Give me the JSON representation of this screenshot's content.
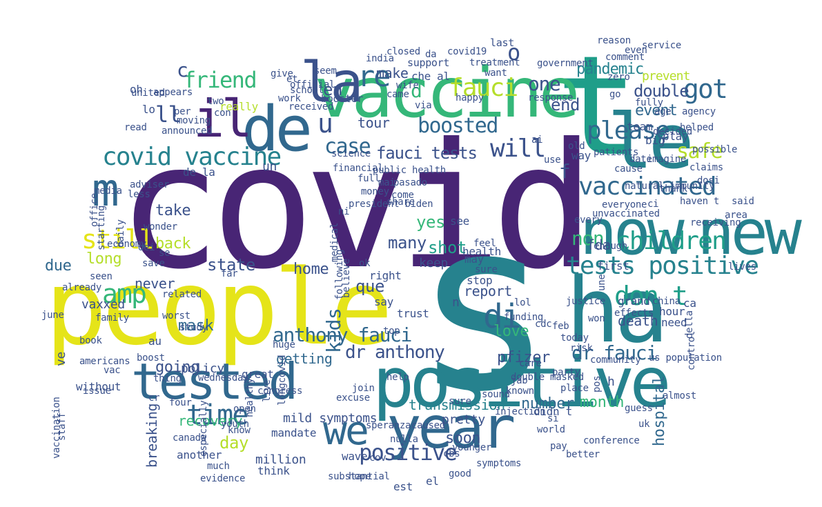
{
  "title": "COVID-19 Tweets Word Cloud",
  "palette": {
    "purple": "#482575",
    "indigo": "#3b528b",
    "blue": "#31688e",
    "teal": "#26828e",
    "tealgreen": "#1f9e89",
    "green": "#35b779",
    "lime": "#6ece58",
    "yellowgreen": "#b5de2b",
    "yellow": "#e5e419"
  },
  "words": [
    {
      "text": "covid",
      "color": "#482575"
    },
    {
      "text": "s",
      "color": "#26828e"
    },
    {
      "text": "people",
      "color": "#e5e419"
    },
    {
      "text": "t",
      "color": "#1f9e89"
    },
    {
      "text": "vaccine",
      "color": "#35b779"
    },
    {
      "text": "new",
      "color": "#26828e"
    },
    {
      "text": "now",
      "color": "#26828e"
    },
    {
      "text": "ha",
      "color": "#26828e"
    },
    {
      "text": "positive",
      "color": "#26828e"
    },
    {
      "text": "tested",
      "color": "#31688e"
    },
    {
      "text": "year",
      "color": "#31688e"
    },
    {
      "text": "le",
      "color": "#26828e"
    },
    {
      "text": "la",
      "color": "#3b528b"
    },
    {
      "text": "de",
      "color": "#31688e"
    },
    {
      "text": "il",
      "color": "#482575"
    },
    {
      "text": "m",
      "color": "#31688e"
    },
    {
      "text": "we",
      "color": "#31688e"
    },
    {
      "text": "tests positive",
      "color": "#26828e"
    },
    {
      "text": "children",
      "color": "#1f9e89"
    },
    {
      "text": "vaccinated",
      "color": "#31688e"
    },
    {
      "text": "please",
      "color": "#31688e"
    },
    {
      "text": "covid vaccine",
      "color": "#26828e"
    },
    {
      "text": "fauci",
      "color": "#b5de2b"
    },
    {
      "text": "got",
      "color": "#31688e"
    },
    {
      "text": "amp",
      "color": "#35b779"
    },
    {
      "text": "still",
      "color": "#e5e419"
    },
    {
      "text": "don t",
      "color": "#1f9e89"
    },
    {
      "text": "di",
      "color": "#31688e"
    },
    {
      "text": "time",
      "color": "#31688e"
    },
    {
      "text": "positive",
      "color": "#3b528b"
    },
    {
      "text": "friend",
      "color": "#35b779"
    },
    {
      "text": "boosted",
      "color": "#31688e"
    },
    {
      "text": "case",
      "color": "#31688e"
    },
    {
      "text": "will",
      "color": "#3b528b"
    },
    {
      "text": "safe",
      "color": "#b5de2b"
    },
    {
      "text": "re",
      "color": "#31688e"
    },
    {
      "text": "anthony fauci",
      "color": "#31688e"
    },
    {
      "text": "dr fauci",
      "color": "#31688e"
    },
    {
      "text": "one",
      "color": "#3b528b"
    },
    {
      "text": "fauci tests",
      "color": "#3b528b"
    },
    {
      "text": "non",
      "color": "#35b779"
    },
    {
      "text": "en",
      "color": "#3b528b"
    },
    {
      "text": "u",
      "color": "#3b528b"
    },
    {
      "text": "ll",
      "color": "#3b528b"
    },
    {
      "text": "o",
      "color": "#3b528b"
    },
    {
      "text": "c",
      "color": "#3b528b"
    },
    {
      "text": "d",
      "color": "#35b779"
    },
    {
      "text": "f",
      "color": "#3b528b"
    },
    {
      "text": "pandemic",
      "color": "#26828e"
    },
    {
      "text": "double",
      "color": "#3b528b"
    },
    {
      "text": "end",
      "color": "#3b528b"
    },
    {
      "text": "event",
      "color": "#31688e"
    },
    {
      "text": "prevent",
      "color": "#b5de2b"
    },
    {
      "text": "tour",
      "color": "#3b528b"
    },
    {
      "text": "make",
      "color": "#3b528b"
    },
    {
      "text": "take",
      "color": "#3b528b"
    },
    {
      "text": "many",
      "color": "#3b528b"
    },
    {
      "text": "yes",
      "color": "#35b779"
    },
    {
      "text": "shot",
      "color": "#1f9e89"
    },
    {
      "text": "back",
      "color": "#b5de2b"
    },
    {
      "text": "long",
      "color": "#b5de2b"
    },
    {
      "text": "due",
      "color": "#31688e"
    },
    {
      "text": "state",
      "color": "#3b528b"
    },
    {
      "text": "home",
      "color": "#3b528b"
    },
    {
      "text": "kids",
      "color": "#31688e"
    },
    {
      "text": "que",
      "color": "#3b528b"
    },
    {
      "text": "report",
      "color": "#3b528b"
    },
    {
      "text": "love",
      "color": "#35b779"
    },
    {
      "text": "mask",
      "color": "#31688e"
    },
    {
      "text": "going",
      "color": "#3b528b"
    },
    {
      "text": "never",
      "color": "#3b528b"
    },
    {
      "text": "getting",
      "color": "#31688e"
    },
    {
      "text": "dr anthony",
      "color": "#3b528b"
    },
    {
      "text": "pfizer",
      "color": "#3b528b"
    },
    {
      "text": "soon",
      "color": "#3b528b"
    },
    {
      "text": "month",
      "color": "#35b779"
    },
    {
      "text": "number",
      "color": "#31688e"
    },
    {
      "text": "death",
      "color": "#3b528b"
    },
    {
      "text": "hospital",
      "color": "#31688e"
    },
    {
      "text": "breaking",
      "color": "#3b528b"
    },
    {
      "text": "recovery",
      "color": "#35b779"
    },
    {
      "text": "day",
      "color": "#b5de2b"
    },
    {
      "text": "mild symptoms",
      "color": "#3b528b"
    },
    {
      "text": "transmission",
      "color": "#26828e"
    },
    {
      "text": "pretty",
      "color": "#3b528b"
    },
    {
      "text": "vaxxed",
      "color": "#3b528b"
    },
    {
      "text": "fda",
      "color": "#3b528b"
    },
    {
      "text": "booster",
      "color": "#3b528b"
    },
    {
      "text": "covid19",
      "color": "#3b528b"
    },
    {
      "text": "last",
      "color": "#3b528b"
    },
    {
      "text": "support",
      "color": "#3b528b"
    },
    {
      "text": "united",
      "color": "#3b528b"
    },
    {
      "text": "government",
      "color": "#3b528b"
    },
    {
      "text": "response",
      "color": "#3b528b"
    },
    {
      "text": "team",
      "color": "#3b528b"
    },
    {
      "text": "play",
      "color": "#3b528b"
    },
    {
      "text": "big",
      "color": "#3b528b"
    },
    {
      "text": "age",
      "color": "#3b528b"
    },
    {
      "text": "fully",
      "color": "#3b528b"
    },
    {
      "text": "via",
      "color": "#3b528b"
    },
    {
      "text": "che",
      "color": "#3b528b"
    },
    {
      "text": "al",
      "color": "#3b528b"
    },
    {
      "text": "really",
      "color": "#b5de2b"
    },
    {
      "text": "con",
      "color": "#3b528b"
    },
    {
      "text": "received",
      "color": "#3b528b"
    },
    {
      "text": "announced",
      "color": "#3b528b"
    },
    {
      "text": "happy",
      "color": "#3b528b"
    },
    {
      "text": "want",
      "color": "#3b528b"
    },
    {
      "text": "feel",
      "color": "#3b528b"
    },
    {
      "text": "see",
      "color": "#3b528b"
    },
    {
      "text": "may",
      "color": "#3b528b"
    },
    {
      "text": "sure",
      "color": "#3b528b"
    },
    {
      "text": "stop",
      "color": "#3b528b"
    },
    {
      "text": "keep",
      "color": "#3b528b"
    },
    {
      "text": "right",
      "color": "#3b528b"
    },
    {
      "text": "believe",
      "color": "#3b528b"
    },
    {
      "text": "say",
      "color": "#3b528b"
    },
    {
      "text": "trust",
      "color": "#3b528b"
    },
    {
      "text": "health",
      "color": "#3b528b"
    },
    {
      "text": "first",
      "color": "#3b528b"
    },
    {
      "text": "enough",
      "color": "#3b528b"
    },
    {
      "text": "grand",
      "color": "#3b528b"
    },
    {
      "text": "china",
      "color": "#3b528b"
    },
    {
      "text": "hour",
      "color": "#3b528b"
    },
    {
      "text": "need",
      "color": "#3b528b"
    },
    {
      "text": "today",
      "color": "#3b528b"
    },
    {
      "text": "care",
      "color": "#3b528b"
    },
    {
      "text": "didn t",
      "color": "#3b528b"
    },
    {
      "text": "world",
      "color": "#3b528b"
    },
    {
      "text": "community",
      "color": "#3b528b"
    },
    {
      "text": "policy",
      "color": "#3b528b"
    },
    {
      "text": "study",
      "color": "#3b528b"
    },
    {
      "text": "worst",
      "color": "#3b528b"
    },
    {
      "text": "americans",
      "color": "#3b528b"
    },
    {
      "text": "boost",
      "color": "#3b528b"
    },
    {
      "text": "without",
      "color": "#3b528b"
    },
    {
      "text": "canada",
      "color": "#3b528b"
    },
    {
      "text": "another",
      "color": "#3b528b"
    },
    {
      "text": "great",
      "color": "#3b528b"
    },
    {
      "text": "caused",
      "color": "#3b528b"
    },
    {
      "text": "help",
      "color": "#3b528b"
    },
    {
      "text": "mandate",
      "color": "#3b528b"
    },
    {
      "text": "million",
      "color": "#3b528b"
    },
    {
      "text": "wave",
      "color": "#3b528b"
    },
    {
      "text": "think",
      "color": "#3b528b"
    },
    {
      "text": "much",
      "color": "#3b528b"
    },
    {
      "text": "hope",
      "color": "#3b528b"
    },
    {
      "text": "good",
      "color": "#3b528b"
    },
    {
      "text": "est",
      "color": "#3b528b"
    },
    {
      "text": "el",
      "color": "#3b528b"
    },
    {
      "text": "jab",
      "color": "#3b528b"
    },
    {
      "text": "guess",
      "color": "#3b528b"
    },
    {
      "text": "top",
      "color": "#3b528b"
    },
    {
      "text": "save",
      "color": "#3b528b"
    },
    {
      "text": "dei",
      "color": "#3b528b"
    },
    {
      "text": "far",
      "color": "#3b528b"
    },
    {
      "text": "seen",
      "color": "#3b528b"
    },
    {
      "text": "already",
      "color": "#3b528b"
    },
    {
      "text": "de la",
      "color": "#3b528b"
    },
    {
      "text": "un",
      "color": "#3b528b"
    },
    {
      "text": "ve",
      "color": "#3b528b"
    },
    {
      "text": "oh",
      "color": "#3b528b"
    },
    {
      "text": "appears",
      "color": "#3b528b"
    },
    {
      "text": "work",
      "color": "#3b528b"
    },
    {
      "text": "lo",
      "color": "#3b528b"
    },
    {
      "text": "read",
      "color": "#3b528b"
    },
    {
      "text": "ok",
      "color": "#3b528b"
    },
    {
      "text": "unvaccinated",
      "color": "#3b528b"
    },
    {
      "text": "thank",
      "color": "#3b528b"
    },
    {
      "text": "risk",
      "color": "#3b528b"
    },
    {
      "text": "feb",
      "color": "#3b528b"
    },
    {
      "text": "au",
      "color": "#3b528b"
    },
    {
      "text": "huge",
      "color": "#3b528b"
    },
    {
      "text": "longcovid",
      "color": "#3b528b"
    },
    {
      "text": "n",
      "color": "#3b528b"
    },
    {
      "text": "h",
      "color": "#3b528b"
    },
    {
      "text": "live",
      "color": "#3b528b"
    },
    {
      "text": "ca",
      "color": "#3b528b"
    },
    {
      "text": "date",
      "color": "#3b528b"
    },
    {
      "text": "go",
      "color": "#3b528b"
    },
    {
      "text": "way",
      "color": "#3b528b"
    },
    {
      "text": "old",
      "color": "#3b528b"
    },
    {
      "text": "money",
      "color": "#3b528b"
    },
    {
      "text": "come",
      "color": "#3b528b"
    },
    {
      "text": "medical",
      "color": "#3b528b"
    },
    {
      "text": "cbs",
      "color": "#3b528b"
    },
    {
      "text": "younger",
      "color": "#3b528b"
    },
    {
      "text": "lol",
      "color": "#3b528b"
    },
    {
      "text": "funding",
      "color": "#3b528b"
    },
    {
      "text": "cdc",
      "color": "#3b528b"
    },
    {
      "text": "party",
      "color": "#3b528b"
    },
    {
      "text": "effects",
      "color": "#3b528b"
    },
    {
      "text": "justice",
      "color": "#3b528b"
    },
    {
      "text": "uk",
      "color": "#3b528b"
    },
    {
      "text": "almost",
      "color": "#3b528b"
    },
    {
      "text": "conference",
      "color": "#3b528b"
    },
    {
      "text": "symptoms",
      "color": "#3b528b"
    },
    {
      "text": "substantial",
      "color": "#3b528b"
    },
    {
      "text": "cov",
      "color": "#3b528b"
    },
    {
      "text": "nulla",
      "color": "#3b528b"
    },
    {
      "text": "healthy",
      "color": "#3b528b"
    },
    {
      "text": "wednesday",
      "color": "#3b528b"
    },
    {
      "text": "book",
      "color": "#3b528b"
    },
    {
      "text": "issue",
      "color": "#3b528b"
    },
    {
      "text": "vaccination",
      "color": "#3b528b"
    },
    {
      "text": "staff",
      "color": "#3b528b"
    },
    {
      "text": "four",
      "color": "#3b528b"
    },
    {
      "text": "youth",
      "color": "#3b528b"
    },
    {
      "text": "open",
      "color": "#3b528b"
    },
    {
      "text": "evidence",
      "color": "#3b528b"
    },
    {
      "text": "thing",
      "color": "#3b528b"
    },
    {
      "text": "vac",
      "color": "#3b528b"
    },
    {
      "text": "economy",
      "color": "#3b528b"
    },
    {
      "text": "related",
      "color": "#3b528b"
    },
    {
      "text": "se",
      "color": "#3b528b"
    },
    {
      "text": "june",
      "color": "#3b528b"
    },
    {
      "text": "family",
      "color": "#3b528b"
    },
    {
      "text": "starting",
      "color": "#3b528b"
    },
    {
      "text": "wonder",
      "color": "#3b528b"
    },
    {
      "text": "daily",
      "color": "#3b528b"
    },
    {
      "text": "office",
      "color": "#3b528b"
    },
    {
      "text": "media",
      "color": "#3b528b"
    },
    {
      "text": "less",
      "color": "#3b528b"
    },
    {
      "text": "adviser",
      "color": "#3b528b"
    },
    {
      "text": "per",
      "color": "#3b528b"
    },
    {
      "text": "moving",
      "color": "#3b528b"
    },
    {
      "text": "school",
      "color": "#3b528b"
    },
    {
      "text": "official",
      "color": "#3b528b"
    },
    {
      "text": "seem",
      "color": "#3b528b"
    },
    {
      "text": "two",
      "color": "#3b528b"
    },
    {
      "text": "et",
      "color": "#3b528b"
    },
    {
      "text": "science",
      "color": "#3b528b"
    },
    {
      "text": "financial",
      "color": "#3b528b"
    },
    {
      "text": "public health",
      "color": "#3b528b"
    },
    {
      "text": "full",
      "color": "#3b528b"
    },
    {
      "text": "mai",
      "color": "#3b528b"
    },
    {
      "text": "pasado",
      "color": "#3b528b"
    },
    {
      "text": "following",
      "color": "#3b528b"
    },
    {
      "text": "president biden",
      "color": "#3b528b"
    },
    {
      "text": "ni",
      "color": "#3b528b"
    },
    {
      "text": "give",
      "color": "#3b528b"
    },
    {
      "text": "india",
      "color": "#3b528b"
    },
    {
      "text": "da",
      "color": "#3b528b"
    },
    {
      "text": "treatment",
      "color": "#3b528b"
    },
    {
      "text": "came",
      "color": "#3b528b"
    },
    {
      "text": "wife",
      "color": "#3b528b"
    },
    {
      "text": "closed",
      "color": "#3b528b"
    },
    {
      "text": "zero",
      "color": "#3b528b"
    },
    {
      "text": "even",
      "color": "#3b528b"
    },
    {
      "text": "reason",
      "color": "#3b528b"
    },
    {
      "text": "service",
      "color": "#3b528b"
    },
    {
      "text": "comment",
      "color": "#3b528b"
    },
    {
      "text": "agency",
      "color": "#3b528b"
    },
    {
      "text": "helped",
      "color": "#3b528b"
    },
    {
      "text": "decided",
      "color": "#3b528b"
    },
    {
      "text": "imagine",
      "color": "#3b528b"
    },
    {
      "text": "patients",
      "color": "#3b528b"
    },
    {
      "text": "cause",
      "color": "#3b528b"
    },
    {
      "text": "claims",
      "color": "#3b528b"
    },
    {
      "text": "haven t",
      "color": "#3b528b"
    },
    {
      "text": "dosi",
      "color": "#3b528b"
    },
    {
      "text": "said",
      "color": "#3b528b"
    },
    {
      "text": "area",
      "color": "#3b528b"
    },
    {
      "text": "receiving",
      "color": "#3b528b"
    },
    {
      "text": "natural immunity",
      "color": "#3b528b"
    },
    {
      "text": "possible",
      "color": "#3b528b"
    },
    {
      "text": "ci",
      "color": "#3b528b"
    },
    {
      "text": "everyone",
      "color": "#3b528b"
    },
    {
      "text": "every",
      "color": "#3b528b"
    },
    {
      "text": "une",
      "color": "#3b528b"
    },
    {
      "text": "della",
      "color": "#3b528b"
    },
    {
      "text": "control",
      "color": "#3b528b"
    },
    {
      "text": "known",
      "color": "#3b528b"
    },
    {
      "text": "place",
      "color": "#3b528b"
    },
    {
      "text": "won",
      "color": "#3b528b"
    },
    {
      "text": "pos",
      "color": "#3b528b"
    },
    {
      "text": "sound",
      "color": "#3b528b"
    },
    {
      "text": "injection",
      "color": "#3b528b"
    },
    {
      "text": "si",
      "color": "#3b528b"
    },
    {
      "text": "us population",
      "color": "#3b528b"
    },
    {
      "text": "know",
      "color": "#3b528b"
    },
    {
      "text": "congress",
      "color": "#3b528b"
    },
    {
      "text": "especially",
      "color": "#3b528b"
    },
    {
      "text": "cr",
      "color": "#3b528b"
    },
    {
      "text": "pay",
      "color": "#3b528b"
    },
    {
      "text": "better",
      "color": "#3b528b"
    },
    {
      "text": "join",
      "color": "#3b528b"
    },
    {
      "text": "excuse",
      "color": "#3b528b"
    },
    {
      "text": "speranza",
      "color": "#3b528b"
    },
    {
      "text": "sure",
      "color": "#3b528b"
    },
    {
      "text": "double masked",
      "color": "#3b528b"
    },
    {
      "text": "use",
      "color": "#3b528b"
    },
    {
      "text": "ai",
      "color": "#3b528b"
    },
    {
      "text": "share",
      "color": "#3b528b"
    },
    {
      "text": "lives",
      "color": "#3b528b"
    }
  ]
}
